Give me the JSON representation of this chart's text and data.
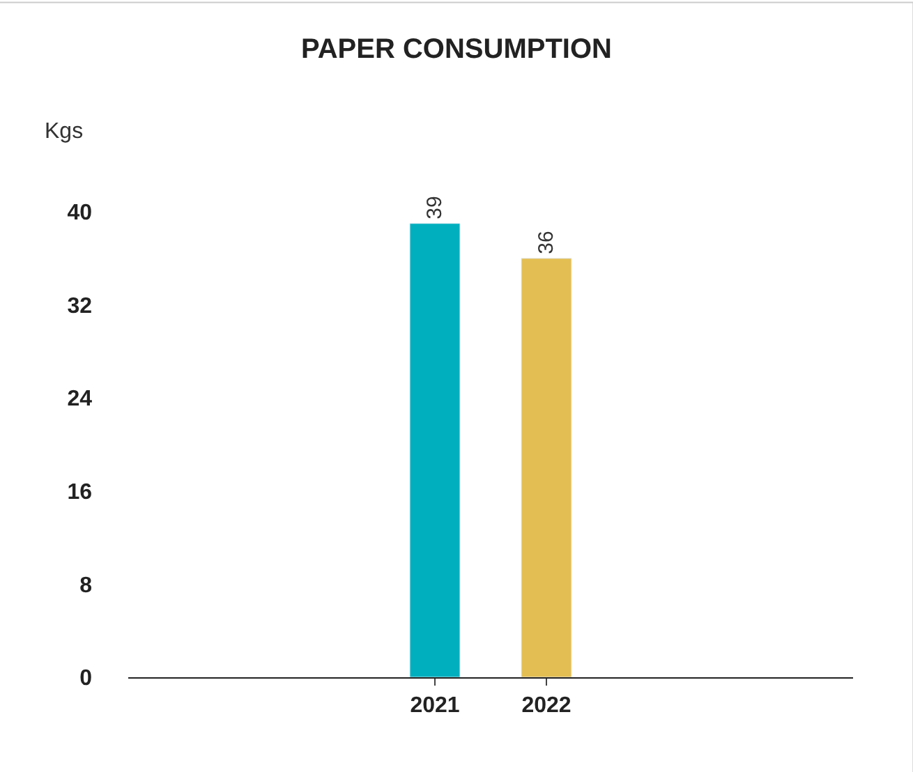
{
  "chart_data": {
    "type": "bar",
    "title": "PAPER CONSUMPTION",
    "ylabel": "Kgs",
    "categories": [
      "2021",
      "2022"
    ],
    "values": [
      39,
      36
    ],
    "colors": [
      "#00afbe",
      "#e3be52"
    ],
    "ylim": [
      0,
      40
    ],
    "yticks": [
      0,
      8,
      16,
      24,
      32,
      40
    ],
    "data_labels": true,
    "grid": false,
    "legend": false
  }
}
